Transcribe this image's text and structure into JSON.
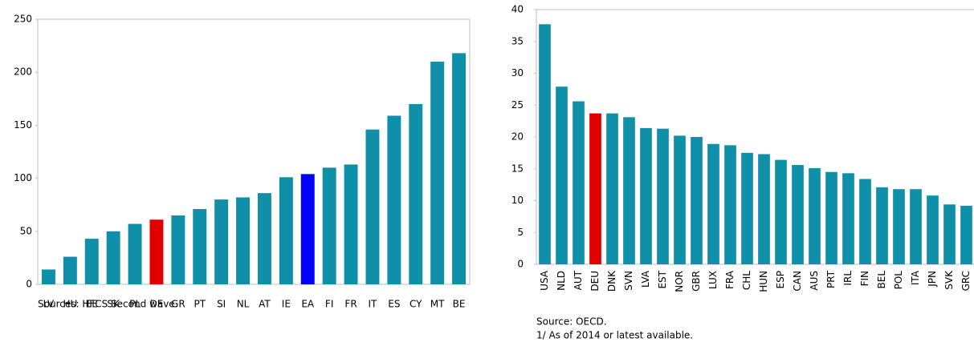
{
  "chart_data": [
    {
      "type": "bar",
      "categories": [
        "LV",
        "HU",
        "EE",
        "SK",
        "PL",
        "DE",
        "GR",
        "PT",
        "SI",
        "NL",
        "AT",
        "IE",
        "EA",
        "FI",
        "FR",
        "IT",
        "ES",
        "CY",
        "MT",
        "BE"
      ],
      "values": [
        14,
        26,
        43,
        50,
        57,
        61,
        65,
        71,
        80,
        82,
        86,
        101,
        104,
        110,
        113,
        146,
        159,
        170,
        210,
        218
      ],
      "color": "#0f8fa8",
      "colors": [
        "#0f8fa8",
        "#0f8fa8",
        "#0f8fa8",
        "#0f8fa8",
        "#0f8fa8",
        "#e00000",
        "#0f8fa8",
        "#0f8fa8",
        "#0f8fa8",
        "#0f8fa8",
        "#0f8fa8",
        "#0f8fa8",
        "#0000ff",
        "#0f8fa8",
        "#0f8fa8",
        "#0f8fa8",
        "#0f8fa8",
        "#0f8fa8",
        "#0f8fa8",
        "#0f8fa8"
      ],
      "ylim": [
        0,
        250
      ],
      "yticks": [
        0,
        50,
        100,
        150,
        200,
        250
      ],
      "label_rotation": 0,
      "notes": [
        "Sources: HFCS Second wave."
      ]
    },
    {
      "type": "bar",
      "categories": [
        "USA",
        "NLD",
        "AUT",
        "DEU",
        "DNK",
        "SVN",
        "LVA",
        "EST",
        "NOR",
        "GBR",
        "LUX",
        "FRA",
        "CHL",
        "HUN",
        "ESP",
        "CAN",
        "AUS",
        "PRT",
        "IRL",
        "FIN",
        "BEL",
        "POL",
        "ITA",
        "JPN",
        "SVK",
        "GRC"
      ],
      "values": [
        37.7,
        27.9,
        25.6,
        23.7,
        23.7,
        23.1,
        21.4,
        21.3,
        20.2,
        20.0,
        18.9,
        18.7,
        17.5,
        17.3,
        16.4,
        15.6,
        15.1,
        14.5,
        14.3,
        13.4,
        12.1,
        11.8,
        11.8,
        10.8,
        9.4,
        9.2
      ],
      "color": "#0f8fa8",
      "colors": [
        "#0f8fa8",
        "#0f8fa8",
        "#0f8fa8",
        "#e00000",
        "#0f8fa8",
        "#0f8fa8",
        "#0f8fa8",
        "#0f8fa8",
        "#0f8fa8",
        "#0f8fa8",
        "#0f8fa8",
        "#0f8fa8",
        "#0f8fa8",
        "#0f8fa8",
        "#0f8fa8",
        "#0f8fa8",
        "#0f8fa8",
        "#0f8fa8",
        "#0f8fa8",
        "#0f8fa8",
        "#0f8fa8",
        "#0f8fa8",
        "#0f8fa8",
        "#0f8fa8",
        "#0f8fa8",
        "#0f8fa8"
      ],
      "ylim": [
        0,
        40
      ],
      "yticks": [
        0,
        5,
        10,
        15,
        20,
        25,
        30,
        35,
        40
      ],
      "label_rotation": -90,
      "notes": [
        "Source: OECD.",
        "1/ As of 2014 or latest available."
      ]
    }
  ]
}
